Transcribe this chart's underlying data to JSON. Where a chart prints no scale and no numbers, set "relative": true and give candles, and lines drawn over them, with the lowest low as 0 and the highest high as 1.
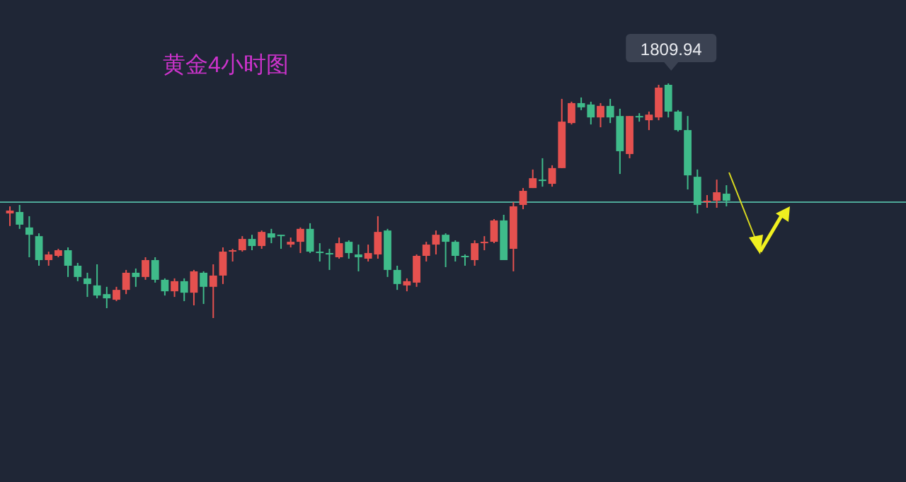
{
  "chart_data": {
    "type": "candlestick",
    "title": "黄金4小时图",
    "relative": true,
    "categories": [
      null,
      null,
      null,
      null,
      null,
      null,
      null,
      null,
      null,
      null,
      null,
      null,
      null,
      null,
      null,
      null,
      null,
      null,
      null,
      null,
      null,
      null,
      null,
      null,
      null,
      null,
      null,
      null,
      null,
      null,
      null,
      null,
      null,
      null,
      null,
      null,
      null,
      null,
      null,
      null,
      null,
      null,
      null,
      null,
      null,
      null,
      null,
      null,
      null,
      null,
      null,
      null,
      null,
      null,
      null,
      null,
      null,
      null,
      null,
      null,
      null,
      null,
      null,
      null,
      null,
      null,
      null,
      null,
      null,
      null,
      null,
      null,
      null,
      null,
      null
    ],
    "ohlc": [
      [
        0.446,
        0.476,
        0.392,
        0.458
      ],
      [
        0.452,
        0.482,
        0.38,
        0.398
      ],
      [
        0.386,
        0.434,
        0.259,
        0.355
      ],
      [
        0.349,
        0.361,
        0.223,
        0.247
      ],
      [
        0.247,
        0.283,
        0.223,
        0.271
      ],
      [
        0.265,
        0.295,
        0.259,
        0.289
      ],
      [
        0.289,
        0.301,
        0.175,
        0.223
      ],
      [
        0.223,
        0.235,
        0.157,
        0.175
      ],
      [
        0.169,
        0.193,
        0.09,
        0.145
      ],
      [
        0.139,
        0.229,
        0.084,
        0.096
      ],
      [
        0.102,
        0.133,
        0.042,
        0.084
      ],
      [
        0.078,
        0.133,
        0.072,
        0.12
      ],
      [
        0.12,
        0.205,
        0.102,
        0.193
      ],
      [
        0.193,
        0.211,
        0.133,
        0.175
      ],
      [
        0.175,
        0.259,
        0.163,
        0.247
      ],
      [
        0.247,
        0.259,
        0.151,
        0.163
      ],
      [
        0.163,
        0.169,
        0.096,
        0.114
      ],
      [
        0.114,
        0.169,
        0.09,
        0.157
      ],
      [
        0.157,
        0.169,
        0.072,
        0.108
      ],
      [
        0.108,
        0.205,
        0.054,
        0.199
      ],
      [
        0.193,
        0.199,
        0.06,
        0.133
      ],
      [
        0.133,
        0.229,
        0.0,
        0.181
      ],
      [
        0.181,
        0.301,
        0.145,
        0.283
      ],
      [
        0.283,
        0.295,
        0.241,
        0.289
      ],
      [
        0.289,
        0.349,
        0.283,
        0.337
      ],
      [
        0.337,
        0.355,
        0.289,
        0.307
      ],
      [
        0.307,
        0.373,
        0.295,
        0.367
      ],
      [
        0.361,
        0.38,
        0.319,
        0.343
      ],
      [
        0.355,
        0.355,
        0.295,
        0.349
      ],
      [
        0.313,
        0.343,
        0.301,
        0.325
      ],
      [
        0.325,
        0.386,
        0.277,
        0.38
      ],
      [
        0.38,
        0.404,
        0.277,
        0.283
      ],
      [
        0.283,
        0.319,
        0.241,
        0.277
      ],
      [
        0.277,
        0.295,
        0.205,
        0.271
      ],
      [
        0.259,
        0.343,
        0.253,
        0.319
      ],
      [
        0.325,
        0.331,
        0.253,
        0.277
      ],
      [
        0.271,
        0.313,
        0.199,
        0.259
      ],
      [
        0.253,
        0.313,
        0.241,
        0.277
      ],
      [
        0.271,
        0.434,
        0.253,
        0.367
      ],
      [
        0.373,
        0.38,
        0.175,
        0.205
      ],
      [
        0.205,
        0.223,
        0.12,
        0.145
      ],
      [
        0.139,
        0.169,
        0.114,
        0.157
      ],
      [
        0.151,
        0.271,
        0.133,
        0.265
      ],
      [
        0.265,
        0.325,
        0.241,
        0.313
      ],
      [
        0.313,
        0.373,
        0.271,
        0.355
      ],
      [
        0.355,
        0.361,
        0.217,
        0.325
      ],
      [
        0.325,
        0.331,
        0.241,
        0.265
      ],
      [
        0.265,
        0.271,
        0.223,
        0.259
      ],
      [
        0.247,
        0.331,
        0.223,
        0.319
      ],
      [
        0.319,
        0.349,
        0.289,
        0.325
      ],
      [
        0.325,
        0.422,
        0.319,
        0.416
      ],
      [
        0.416,
        0.44,
        0.247,
        0.247
      ],
      [
        0.295,
        0.494,
        0.199,
        0.476
      ],
      [
        0.482,
        0.554,
        0.464,
        0.542
      ],
      [
        0.554,
        0.633,
        0.554,
        0.596
      ],
      [
        0.59,
        0.681,
        0.56,
        0.584
      ],
      [
        0.572,
        0.651,
        0.56,
        0.639
      ],
      [
        0.639,
        0.934,
        0.639,
        0.837
      ],
      [
        0.831,
        0.922,
        0.825,
        0.916
      ],
      [
        0.916,
        0.94,
        0.886,
        0.898
      ],
      [
        0.91,
        0.922,
        0.825,
        0.855
      ],
      [
        0.855,
        0.916,
        0.813,
        0.904
      ],
      [
        0.904,
        0.934,
        0.831,
        0.855
      ],
      [
        0.861,
        0.892,
        0.614,
        0.711
      ],
      [
        0.699,
        0.861,
        0.681,
        0.861
      ],
      [
        0.861,
        0.873,
        0.837,
        0.855
      ],
      [
        0.843,
        0.88,
        0.801,
        0.867
      ],
      [
        0.855,
        0.994,
        0.843,
        0.982
      ],
      [
        0.994,
        1,
        0.855,
        0.88
      ],
      [
        0.88,
        0.886,
        0.795,
        0.801
      ],
      [
        0.801,
        0.861,
        0.548,
        0.608
      ],
      [
        0.602,
        0.633,
        0.446,
        0.482
      ],
      [
        0.494,
        0.524,
        0.47,
        0.5
      ],
      [
        0.5,
        0.59,
        0.47,
        0.536
      ],
      [
        0.53,
        0.566,
        0.476,
        0.5
      ]
    ],
    "annotations": [
      {
        "text": "1809.94",
        "y": 1
      }
    ],
    "ref_lines": [
      {
        "axis": "y",
        "value": 0.494,
        "color": "#4fa898"
      }
    ]
  }
}
